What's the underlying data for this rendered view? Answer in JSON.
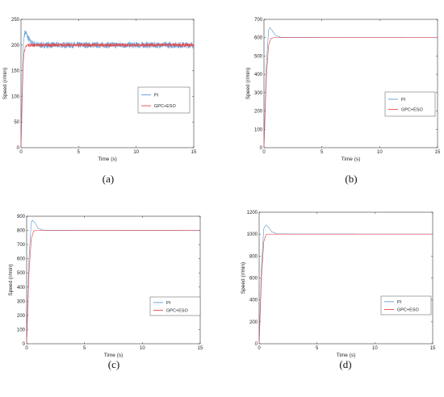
{
  "chart_data": [
    {
      "type": "line",
      "caption": "(a)",
      "xlabel": "Time (s)",
      "ylabel": "Speed (r/min)",
      "xlim": [
        0,
        15
      ],
      "ylim": [
        0,
        250
      ],
      "xticks": [
        0,
        5,
        10,
        15
      ],
      "yticks": [
        0,
        50,
        100,
        150,
        200,
        250
      ],
      "grid": false,
      "legend_position": "right-middle",
      "series": [
        {
          "name": "PI",
          "color": "#5b9bd5",
          "setpoint": 200,
          "peak": 225,
          "peak_time": 0.4,
          "settle_time": 1.5,
          "ripple": 6,
          "points": [
            [
              0,
              0
            ],
            [
              0.1,
              110
            ],
            [
              0.2,
              200
            ],
            [
              0.3,
              222
            ],
            [
              0.4,
              225
            ],
            [
              0.6,
              215
            ],
            [
              0.8,
              206
            ],
            [
              1.0,
              203
            ],
            [
              1.5,
              200
            ],
            [
              15,
              200
            ]
          ]
        },
        {
          "name": "GPC+ESO",
          "color": "#e84a4a",
          "setpoint": 200,
          "peak": 203,
          "peak_time": 0.6,
          "settle_time": 1.0,
          "ripple": 3,
          "points": [
            [
              0,
              0
            ],
            [
              0.1,
              90
            ],
            [
              0.2,
              170
            ],
            [
              0.3,
              190
            ],
            [
              0.5,
              200
            ],
            [
              15,
              200
            ]
          ]
        }
      ]
    },
    {
      "type": "line",
      "caption": "(b)",
      "xlabel": "Time (s)",
      "ylabel": "Speed (r/min)",
      "xlim": [
        0,
        15
      ],
      "ylim": [
        0,
        700
      ],
      "xticks": [
        0,
        5,
        10,
        15
      ],
      "yticks": [
        0,
        100,
        200,
        300,
        400,
        500,
        600,
        700
      ],
      "grid": false,
      "legend_position": "right-middle",
      "series": [
        {
          "name": "PI",
          "color": "#5b9bd5",
          "setpoint": 600,
          "peak": 655,
          "peak_time": 0.5,
          "settle_time": 1.5,
          "ripple": 0,
          "points": [
            [
              0,
              0
            ],
            [
              0.2,
              450
            ],
            [
              0.4,
              640
            ],
            [
              0.5,
              655
            ],
            [
              0.7,
              640
            ],
            [
              1.0,
              612
            ],
            [
              1.5,
              601
            ],
            [
              15,
              600
            ]
          ]
        },
        {
          "name": "GPC+ESO",
          "color": "#e84a4a",
          "setpoint": 600,
          "peak": 601,
          "peak_time": 0.8,
          "settle_time": 0.8,
          "ripple": 0,
          "points": [
            [
              0,
              0
            ],
            [
              0.2,
              380
            ],
            [
              0.4,
              560
            ],
            [
              0.6,
              595
            ],
            [
              0.8,
              600
            ],
            [
              15,
              600
            ]
          ]
        }
      ]
    },
    {
      "type": "line",
      "caption": "(c)",
      "xlabel": "Time (s)",
      "ylabel": "Speed (r/min)",
      "xlim": [
        0,
        15
      ],
      "ylim": [
        0,
        900
      ],
      "xticks": [
        0,
        5,
        10,
        15
      ],
      "yticks": [
        0,
        100,
        200,
        300,
        400,
        500,
        600,
        700,
        800,
        900
      ],
      "grid": false,
      "legend_position": "right-middle",
      "series": [
        {
          "name": "PI",
          "color": "#5b9bd5",
          "setpoint": 800,
          "peak": 872,
          "peak_time": 0.5,
          "settle_time": 1.5,
          "ripple": 0,
          "points": [
            [
              0,
              0
            ],
            [
              0.2,
              600
            ],
            [
              0.4,
              860
            ],
            [
              0.5,
              872
            ],
            [
              0.7,
              855
            ],
            [
              1.0,
              815
            ],
            [
              1.5,
              801
            ],
            [
              15,
              800
            ]
          ]
        },
        {
          "name": "GPC+ESO",
          "color": "#e84a4a",
          "setpoint": 800,
          "peak": 801,
          "peak_time": 0.8,
          "settle_time": 0.8,
          "ripple": 0,
          "points": [
            [
              0,
              0
            ],
            [
              0.2,
              500
            ],
            [
              0.4,
              740
            ],
            [
              0.6,
              795
            ],
            [
              0.8,
              800
            ],
            [
              15,
              800
            ]
          ]
        }
      ]
    },
    {
      "type": "line",
      "caption": "(d)",
      "xlabel": "Time (s)",
      "ylabel": "Speed (r/min)",
      "xlim": [
        0,
        15
      ],
      "ylim": [
        0,
        1200
      ],
      "xticks": [
        0,
        5,
        10,
        15
      ],
      "yticks": [
        0,
        200,
        400,
        600,
        800,
        1000,
        1200
      ],
      "grid": false,
      "legend_position": "right-middle",
      "series": [
        {
          "name": "PI",
          "color": "#5b9bd5",
          "setpoint": 1000,
          "peak": 1085,
          "peak_time": 0.6,
          "settle_time": 1.6,
          "ripple": 0,
          "points": [
            [
              0,
              0
            ],
            [
              0.2,
              700
            ],
            [
              0.4,
              1050
            ],
            [
              0.6,
              1085
            ],
            [
              0.8,
              1065
            ],
            [
              1.1,
              1020
            ],
            [
              1.6,
              1002
            ],
            [
              15,
              1000
            ]
          ]
        },
        {
          "name": "GPC+ESO",
          "color": "#e84a4a",
          "setpoint": 1000,
          "peak": 1001,
          "peak_time": 0.8,
          "settle_time": 0.8,
          "ripple": 0,
          "points": [
            [
              0,
              0
            ],
            [
              0.2,
              600
            ],
            [
              0.4,
              930
            ],
            [
              0.6,
              995
            ],
            [
              0.8,
              1000
            ],
            [
              15,
              1000
            ]
          ]
        }
      ]
    }
  ]
}
